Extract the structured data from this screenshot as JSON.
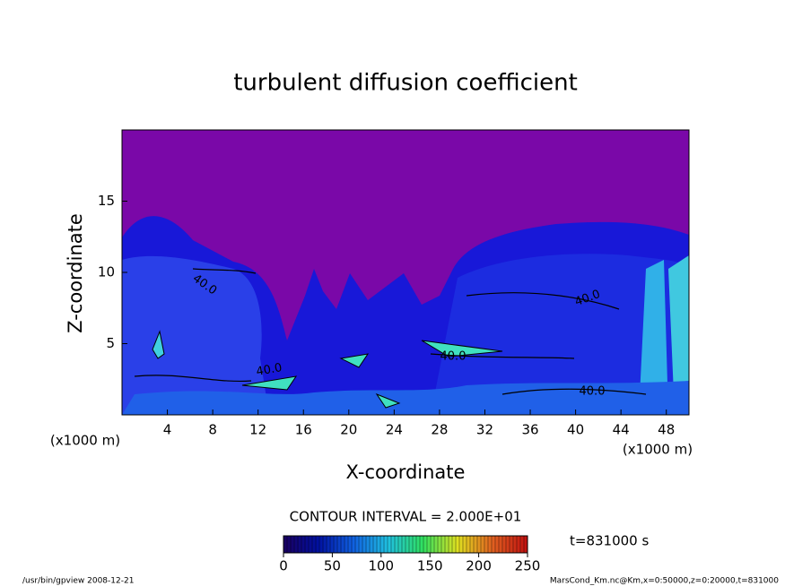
{
  "chart_data": {
    "type": "contour",
    "title": "turbulent diffusion coefficient",
    "x_label": "X-coordinate",
    "y_label": "Z-coordinate",
    "x_unit_left": "(x1000 m)",
    "x_unit_right": "(x1000 m)",
    "xlim": [
      0,
      50
    ],
    "xticks": [
      4,
      8,
      12,
      16,
      20,
      24,
      28,
      32,
      36,
      40,
      44,
      48
    ],
    "ylim": [
      0,
      20
    ],
    "yticks": [
      5,
      10,
      15
    ],
    "contour_interval": "CONTOUR INTERVAL = 2.000E+01",
    "contour_labels": [
      "40.0",
      "40.0",
      "40.0",
      "40.0",
      "40.0"
    ],
    "time_label": "t=831000 s",
    "colorbar": {
      "lim": [
        0,
        250
      ],
      "ticks": [
        0,
        50,
        100,
        150,
        200,
        250
      ],
      "colors": [
        "#1a0060",
        "#0010a0",
        "#1060e0",
        "#20c0e0",
        "#30e060",
        "#e0e020",
        "#e06020",
        "#c01010"
      ]
    },
    "footer_left": "/usr/bin/gpview   2008-12-21",
    "footer_right": "MarsCond_Km.nc@Km,x=0:50000,z=0:20000,t=831000"
  }
}
